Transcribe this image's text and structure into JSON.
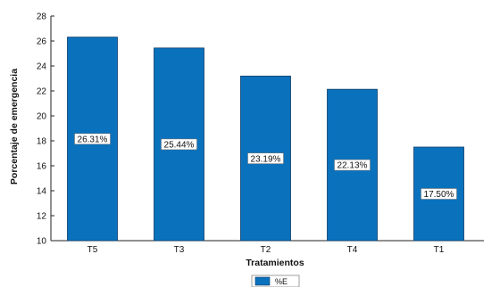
{
  "chart_data": {
    "type": "bar",
    "title": "",
    "xlabel": "Tratamientos",
    "ylabel": "Porcentaje de emergencia",
    "categories": [
      "T5",
      "T3",
      "T2",
      "T4",
      "T1"
    ],
    "values": [
      26.31,
      25.44,
      23.19,
      22.13,
      17.5
    ],
    "data_labels": [
      "26.31%",
      "25.44%",
      "23.19%",
      "22.13%",
      "17.50%"
    ],
    "ylim": [
      10,
      28
    ],
    "yticks": [
      "10",
      "12",
      "14",
      "16",
      "18",
      "20",
      "22",
      "24",
      "26",
      "28"
    ],
    "series": [
      {
        "name": "%E",
        "color": "#0a72bd"
      }
    ],
    "legend_position": "bottom",
    "grid": false
  }
}
